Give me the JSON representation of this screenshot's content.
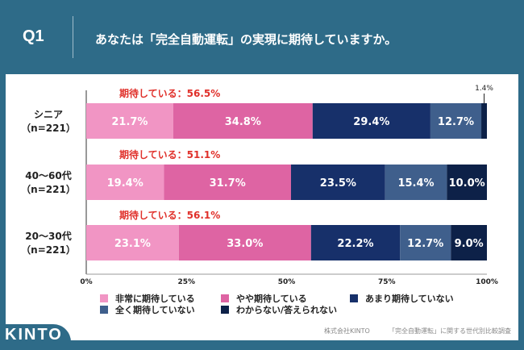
{
  "header": {
    "q": "Q1",
    "title": "あなたは「完全自動運転」の実現に期待していますか。"
  },
  "chart_data": {
    "type": "bar",
    "orientation": "horizontal",
    "stacked": true,
    "categories": [
      "シニア\n（n=221）",
      "40〜60代\n（n=221）",
      "20〜30代\n（n=221）"
    ],
    "category_lines": [
      [
        "シニア",
        "（n=221）"
      ],
      [
        "40〜60代",
        "（n=221）"
      ],
      [
        "20〜30代",
        "（n=221）"
      ]
    ],
    "series": [
      {
        "name": "非常に期待している",
        "color": "#f195c4",
        "values": [
          21.7,
          19.4,
          23.1
        ]
      },
      {
        "name": "やや期待している",
        "color": "#de64a3",
        "values": [
          34.8,
          31.7,
          33.0
        ]
      },
      {
        "name": "あまり期待していない",
        "color": "#17306a",
        "values": [
          29.4,
          23.5,
          22.2
        ]
      },
      {
        "name": "全く期待していない",
        "color": "#3f5f8c",
        "values": [
          12.7,
          15.4,
          12.7
        ]
      },
      {
        "name": "わからない/答えられない",
        "color": "#0d2148",
        "values": [
          1.4,
          10.0,
          9.0
        ]
      }
    ],
    "annotations": [
      "期待している：56.5%",
      "期待している：51.1%",
      "期待している：56.1%"
    ],
    "annotation_color": "#e0302a",
    "xticks": [
      "0%",
      "25%",
      "50%",
      "75%",
      "100%"
    ],
    "xlim": [
      0,
      100
    ]
  },
  "footer": {
    "company": "株式会社KINTO",
    "survey": "「完全自動運転」に関する世代別比較調査"
  },
  "logo": "KINTO"
}
